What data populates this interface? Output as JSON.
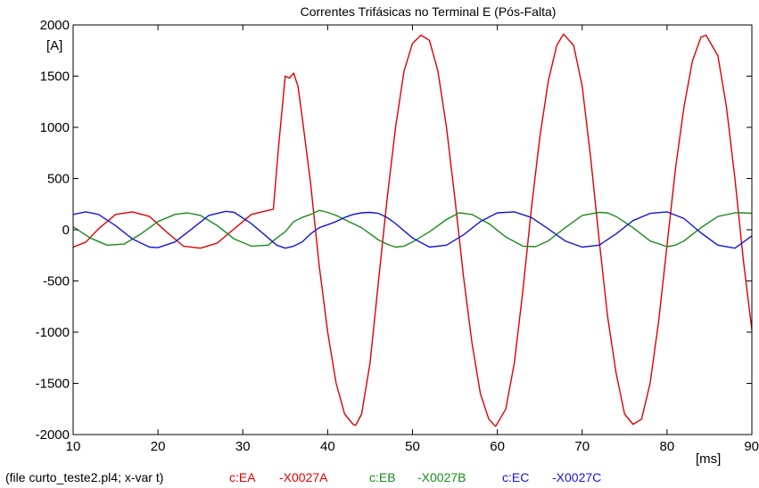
{
  "chart_data": {
    "type": "line",
    "title": "Correntes Trifásicas no Terminal E (Pós-Falta)",
    "ylabel": "[A]",
    "xlabel": "[ms]",
    "xlim": [
      10,
      90
    ],
    "ylim": [
      -2000,
      2000
    ],
    "x_ticks": [
      10,
      20,
      30,
      40,
      50,
      60,
      70,
      80,
      90
    ],
    "y_ticks": [
      2000,
      1500,
      1000,
      500,
      0,
      -500,
      -1000,
      -1500,
      -2000
    ],
    "x_tick_labels": [
      "10",
      "20",
      "30",
      "40",
      "50",
      "60",
      "70",
      "80",
      "90"
    ],
    "y_tick_labels": [
      "2000",
      "1500",
      "1000",
      "500",
      "0",
      "-500",
      "-1000",
      "-1500",
      "-2000"
    ],
    "grid": false,
    "series": [
      {
        "name": "c:EA -X0027A",
        "color": "#e00000",
        "x": [
          10,
          11.5,
          13,
          15,
          17,
          19,
          21,
          23,
          25,
          27,
          29,
          31,
          33,
          33.6,
          34.2,
          35,
          35.5,
          36,
          36.5,
          37,
          38,
          39,
          40,
          41,
          42,
          43,
          43.3,
          44,
          45,
          46,
          47,
          48,
          49,
          50,
          51,
          52,
          53,
          54,
          55,
          56,
          57,
          58,
          59,
          59.8,
          61,
          62,
          63,
          64,
          65,
          66,
          67,
          67.8,
          69,
          70,
          71,
          72,
          73,
          74,
          75,
          76,
          77,
          78,
          79,
          80,
          81,
          82,
          83,
          84,
          84.6,
          86,
          87,
          88,
          89,
          90
        ],
        "values": [
          -170,
          -120,
          10,
          150,
          175,
          130,
          -20,
          -160,
          -180,
          -130,
          10,
          150,
          190,
          200,
          800,
          1500,
          1480,
          1530,
          1400,
          1100,
          450,
          -350,
          -1000,
          -1500,
          -1800,
          -1900,
          -1910,
          -1800,
          -1300,
          -500,
          300,
          1000,
          1550,
          1820,
          1900,
          1850,
          1550,
          1000,
          300,
          -450,
          -1100,
          -1600,
          -1850,
          -1920,
          -1750,
          -1300,
          -600,
          200,
          900,
          1450,
          1800,
          1910,
          1800,
          1400,
          700,
          -100,
          -850,
          -1400,
          -1800,
          -1900,
          -1850,
          -1500,
          -900,
          -150,
          600,
          1200,
          1650,
          1880,
          1900,
          1700,
          1200,
          500,
          -300,
          -980
        ]
      },
      {
        "name": "c:EB -X0027B",
        "color": "#1a8c1a",
        "x": [
          10,
          12,
          14,
          16,
          18,
          20,
          22,
          23.5,
          25,
          27,
          29,
          31,
          33,
          34,
          35,
          36,
          37,
          38,
          39,
          40,
          41,
          42,
          43,
          44,
          45,
          46,
          47,
          48,
          49,
          50,
          52,
          54,
          55.5,
          57,
          59,
          61,
          63,
          64.5,
          66,
          68,
          70,
          72,
          73,
          74,
          76,
          78,
          80,
          81,
          82,
          84,
          86,
          88,
          89,
          90
        ],
        "values": [
          30,
          -80,
          -150,
          -140,
          -40,
          80,
          150,
          165,
          140,
          40,
          -90,
          -160,
          -150,
          -80,
          -20,
          80,
          120,
          150,
          190,
          170,
          140,
          100,
          60,
          20,
          -40,
          -100,
          -140,
          -170,
          -160,
          -120,
          -20,
          100,
          165,
          150,
          60,
          -70,
          -160,
          -165,
          -110,
          20,
          140,
          170,
          165,
          130,
          20,
          -110,
          -165,
          -150,
          -110,
          20,
          130,
          165,
          165,
          160
        ]
      },
      {
        "name": "c:EC -X0027C",
        "color": "#1414d8",
        "x": [
          10,
          11.5,
          13,
          15,
          17,
          19,
          20,
          22,
          24,
          26,
          28,
          29,
          31,
          33,
          34,
          35,
          36,
          37,
          38,
          39,
          40,
          41,
          42,
          43,
          44,
          45,
          46,
          47,
          48,
          50,
          52,
          54,
          56,
          58,
          60,
          62,
          64,
          66,
          68,
          70,
          72,
          74,
          76,
          78,
          80,
          82,
          84,
          86,
          88,
          90
        ],
        "values": [
          150,
          175,
          150,
          40,
          -90,
          -170,
          -175,
          -120,
          10,
          140,
          180,
          170,
          60,
          -80,
          -150,
          -180,
          -160,
          -120,
          -40,
          20,
          50,
          80,
          120,
          150,
          165,
          170,
          160,
          120,
          60,
          -80,
          -170,
          -150,
          -50,
          80,
          165,
          175,
          120,
          10,
          -110,
          -170,
          -150,
          -40,
          90,
          160,
          175,
          110,
          -30,
          -150,
          -180,
          -60
        ]
      }
    ],
    "footer": {
      "file_text": "(file curto_teste2.pl4; x-var t)",
      "legend": [
        {
          "label": "c:EA",
          "node": "-X0027A",
          "color": "#e00000"
        },
        {
          "label": "c:EB",
          "node": "-X0027B",
          "color": "#1a8c1a"
        },
        {
          "label": "c:EC",
          "node": "-X0027C",
          "color": "#1414d8"
        }
      ]
    }
  }
}
